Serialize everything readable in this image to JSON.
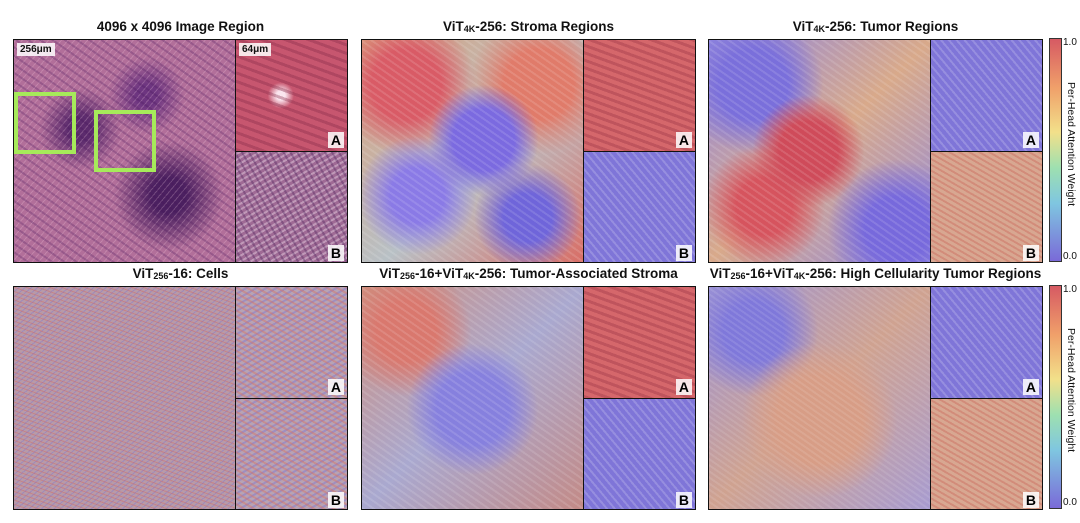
{
  "panels": [
    {
      "title_main": "4096 x 4096 Image Region",
      "scale_main": "256μm",
      "scale_inset": "64μm",
      "inset_a": "A",
      "inset_b": "B"
    },
    {
      "title_pre": "ViT",
      "title_sub": "4K",
      "title_post": "-256: Stroma Regions",
      "inset_a": "A",
      "inset_b": "B"
    },
    {
      "title_pre": "ViT",
      "title_sub": "4K",
      "title_post": "-256: Tumor Regions",
      "inset_a": "A",
      "inset_b": "B"
    },
    {
      "title_pre": "ViT",
      "title_sub": "256",
      "title_post": "-16: Cells",
      "inset_a": "A",
      "inset_b": "B"
    },
    {
      "title_pre": "ViT",
      "title_sub": "256",
      "title_mid": "-16+ViT",
      "title_sub2": "4K",
      "title_post": "-256: Tumor-Associated Stroma",
      "inset_a": "A",
      "inset_b": "B"
    },
    {
      "title_pre": "ViT",
      "title_sub": "256",
      "title_mid": "-16+ViT",
      "title_sub2": "4K",
      "title_post": "-256: High Cellularity Tumor Regions",
      "inset_a": "A",
      "inset_b": "B"
    }
  ],
  "colorbar": {
    "max": "1.0",
    "min": "0.0",
    "label": "Per-Head Attention Weight"
  }
}
